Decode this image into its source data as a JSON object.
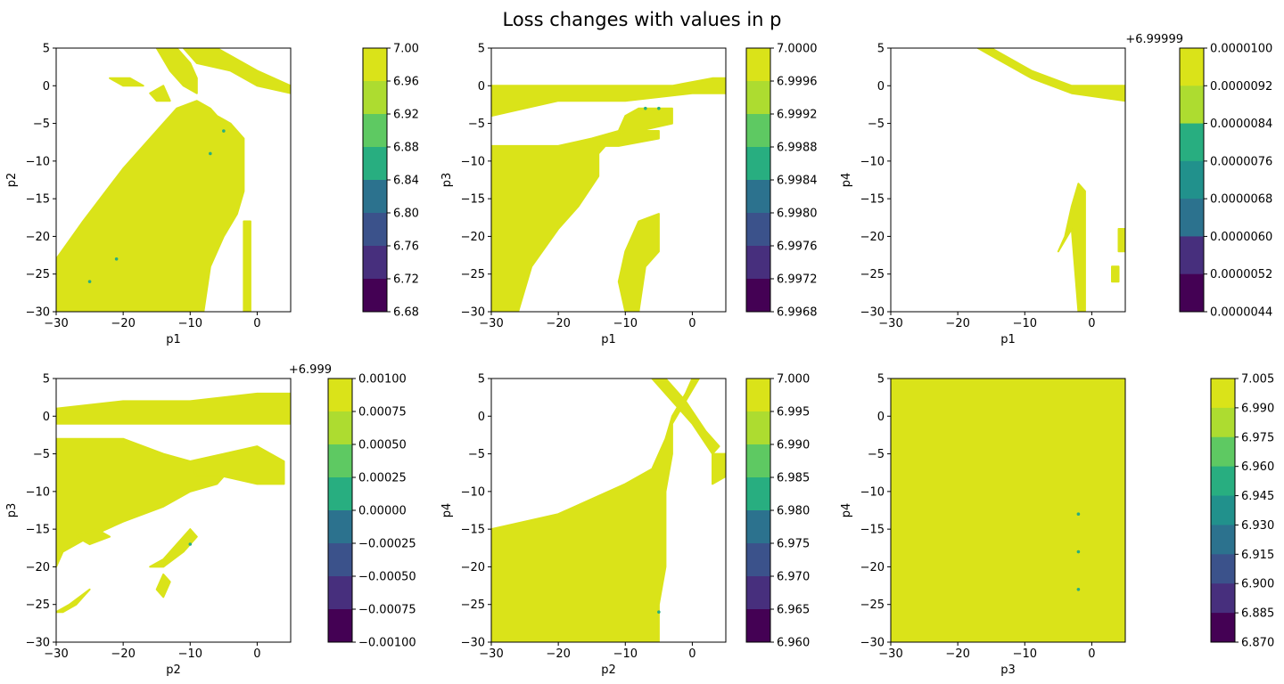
{
  "title": "Loss changes with values in p",
  "colors": [
    "#440154",
    "#472f7d",
    "#3b528b",
    "#2c728e",
    "#21918c",
    "#28ae80",
    "#5ec962",
    "#addc30",
    "#dae319"
  ],
  "chart_data": [
    {
      "type": "heatmap",
      "xlabel": "p1",
      "ylabel": "p2",
      "xlim": [
        -30,
        5
      ],
      "ylim": [
        -30,
        5
      ],
      "xticks": [
        "−30",
        "−20",
        "−10",
        "0"
      ],
      "yticks": [
        "5",
        "0",
        "−5",
        "−10",
        "−15",
        "−20",
        "−25",
        "−30"
      ],
      "colorbar": {
        "ticks": [
          "7.00",
          "6.96",
          "6.92",
          "6.88",
          "6.84",
          "6.80",
          "6.76",
          "6.72",
          "6.68"
        ],
        "offset": ""
      }
    },
    {
      "type": "heatmap",
      "xlabel": "p1",
      "ylabel": "p3",
      "xlim": [
        -30,
        5
      ],
      "ylim": [
        -30,
        5
      ],
      "xticks": [
        "−30",
        "−20",
        "−10",
        "0"
      ],
      "yticks": [
        "5",
        "0",
        "−5",
        "−10",
        "−15",
        "−20",
        "−25",
        "−30"
      ],
      "colorbar": {
        "ticks": [
          "7.0000",
          "6.9996",
          "6.9992",
          "6.9988",
          "6.9984",
          "6.9980",
          "6.9976",
          "6.9972",
          "6.9968"
        ],
        "offset": ""
      }
    },
    {
      "type": "heatmap",
      "xlabel": "p1",
      "ylabel": "p4",
      "xlim": [
        -30,
        5
      ],
      "ylim": [
        -30,
        5
      ],
      "xticks": [
        "−30",
        "−20",
        "−10",
        "0"
      ],
      "yticks": [
        "5",
        "0",
        "−5",
        "−10",
        "−15",
        "−20",
        "−25",
        "−30"
      ],
      "colorbar": {
        "ticks": [
          "0.0000100",
          "0.0000092",
          "0.0000084",
          "0.0000076",
          "0.0000068",
          "0.0000060",
          "0.0000052",
          "0.0000044"
        ],
        "offset": "+6.99999"
      }
    },
    {
      "type": "heatmap",
      "xlabel": "p2",
      "ylabel": "p3",
      "xlim": [
        -30,
        5
      ],
      "ylim": [
        -30,
        5
      ],
      "xticks": [
        "−30",
        "−20",
        "−10",
        "0"
      ],
      "yticks": [
        "5",
        "0",
        "−5",
        "−10",
        "−15",
        "−20",
        "−25",
        "−30"
      ],
      "colorbar": {
        "ticks": [
          "0.00100",
          "0.00075",
          "0.00050",
          "0.00025",
          "0.00000",
          "−0.00025",
          "−0.00050",
          "−0.00075",
          "−0.00100"
        ],
        "offset": "+6.999"
      }
    },
    {
      "type": "heatmap",
      "xlabel": "p2",
      "ylabel": "p4",
      "xlim": [
        -30,
        5
      ],
      "ylim": [
        -30,
        5
      ],
      "xticks": [
        "−30",
        "−20",
        "−10",
        "0"
      ],
      "yticks": [
        "5",
        "0",
        "−5",
        "−10",
        "−15",
        "−20",
        "−25",
        "−30"
      ],
      "colorbar": {
        "ticks": [
          "7.000",
          "6.995",
          "6.990",
          "6.985",
          "6.980",
          "6.975",
          "6.970",
          "6.965",
          "6.960"
        ],
        "offset": ""
      }
    },
    {
      "type": "heatmap",
      "xlabel": "p3",
      "ylabel": "p4",
      "xlim": [
        -30,
        5
      ],
      "ylim": [
        -30,
        5
      ],
      "xticks": [
        "−30",
        "−20",
        "−10",
        "0"
      ],
      "yticks": [
        "5",
        "0",
        "−5",
        "−10",
        "−15",
        "−20",
        "−25",
        "−30"
      ],
      "colorbar": {
        "ticks": [
          "7.005",
          "6.990",
          "6.975",
          "6.960",
          "6.945",
          "6.930",
          "6.915",
          "6.900",
          "6.885",
          "6.870"
        ],
        "offset": ""
      }
    }
  ]
}
